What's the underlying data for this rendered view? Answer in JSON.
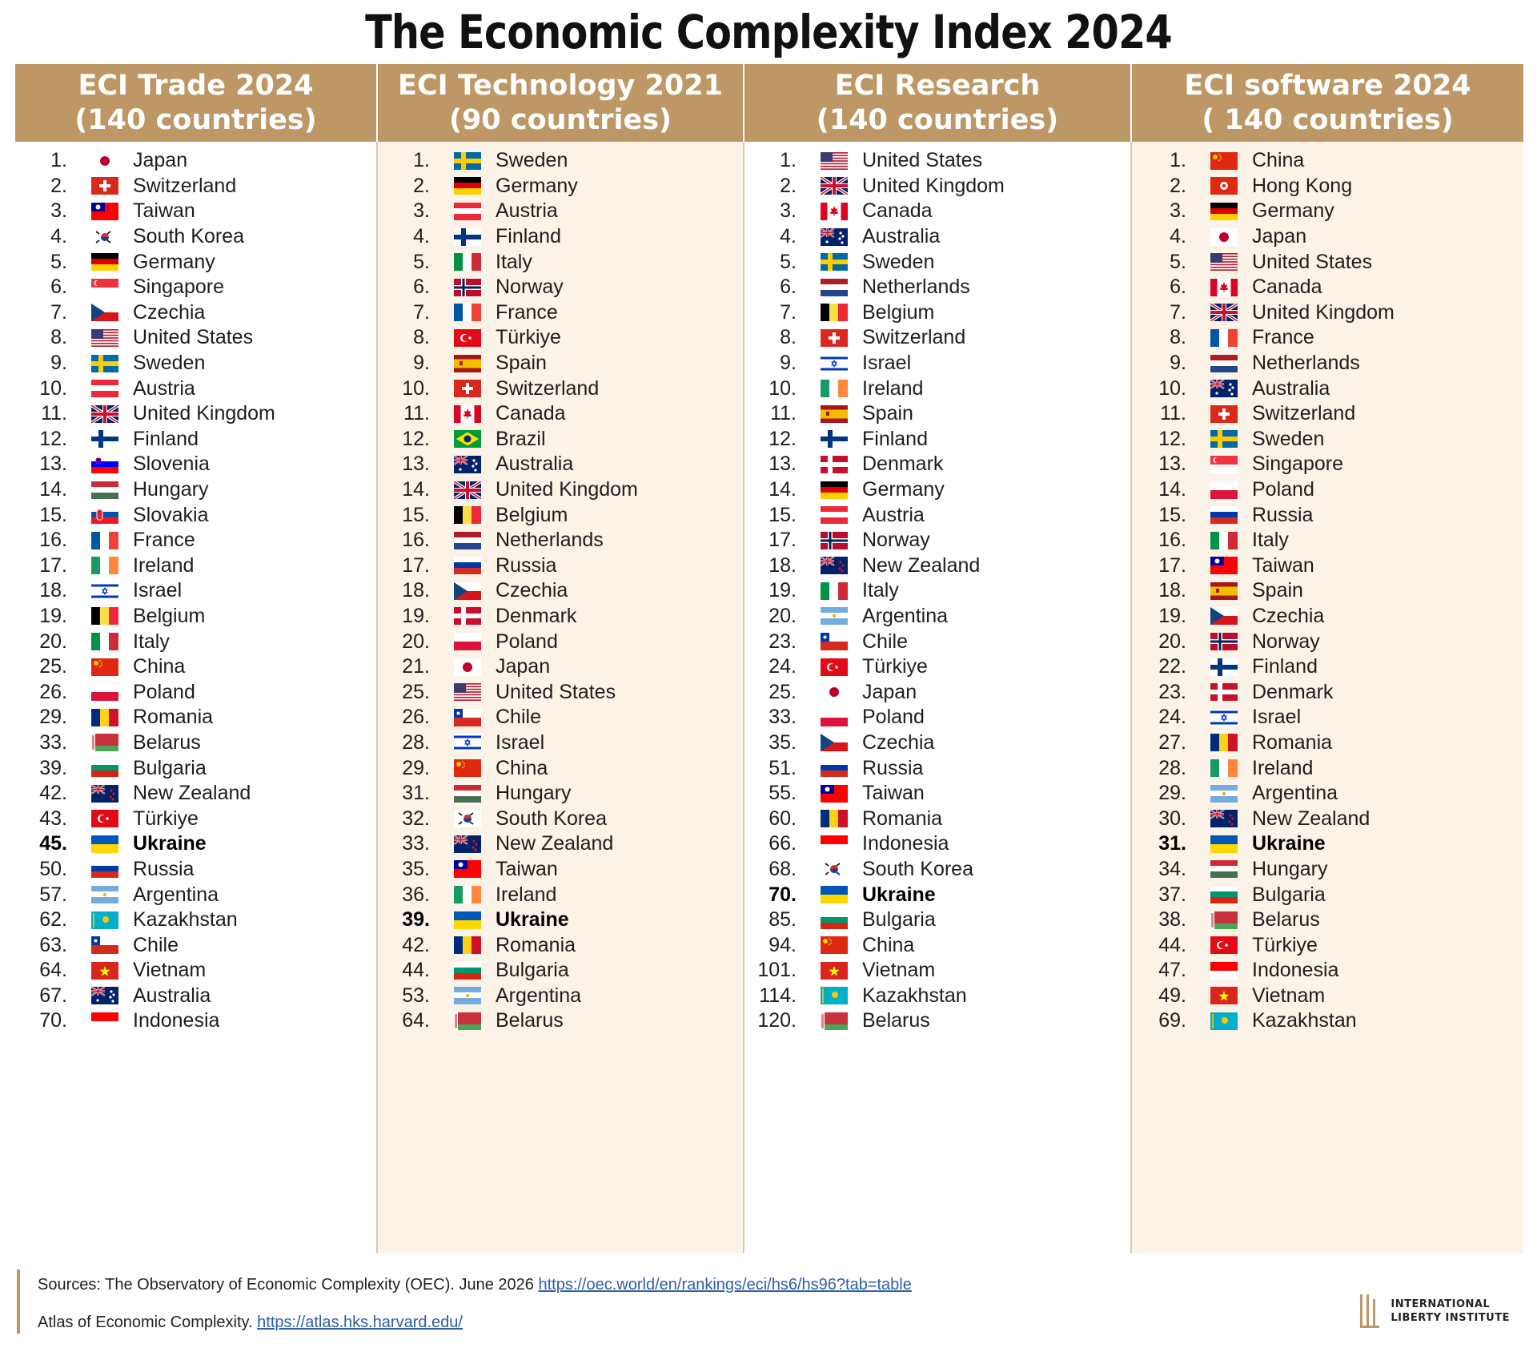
{
  "title": "The Economic Complexity Index  2024",
  "columns": [
    {
      "header": [
        "ECI Trade 2024",
        "(140 countries)"
      ],
      "rows": [
        {
          "rank": "1.",
          "country": "Japan",
          "flag": "japan-flag"
        },
        {
          "rank": "2.",
          "country": "Switzerland",
          "flag": "switzerland-flag"
        },
        {
          "rank": "3.",
          "country": "Taiwan",
          "flag": "taiwan-flag"
        },
        {
          "rank": "4.",
          "country": "South Korea",
          "flag": "south-korea-flag"
        },
        {
          "rank": "5.",
          "country": "Germany",
          "flag": "germany-flag"
        },
        {
          "rank": "6.",
          "country": "Singapore",
          "flag": "singapore-flag"
        },
        {
          "rank": "7.",
          "country": "Czechia",
          "flag": "czechia-flag"
        },
        {
          "rank": "8.",
          "country": "United States",
          "flag": "united-states-flag"
        },
        {
          "rank": "9.",
          "country": "Sweden",
          "flag": "sweden-flag"
        },
        {
          "rank": "10.",
          "country": "Austria",
          "flag": "austria-flag"
        },
        {
          "rank": "11.",
          "country": "United Kingdom",
          "flag": "united-kingdom-flag"
        },
        {
          "rank": "12.",
          "country": "Finland",
          "flag": "finland-flag"
        },
        {
          "rank": "13.",
          "country": "Slovenia",
          "flag": "slovenia-flag"
        },
        {
          "rank": "14.",
          "country": "Hungary",
          "flag": "hungary-flag"
        },
        {
          "rank": "15.",
          "country": "Slovakia",
          "flag": "slovakia-flag"
        },
        {
          "rank": "16.",
          "country": "France",
          "flag": "france-flag"
        },
        {
          "rank": "17.",
          "country": "Ireland",
          "flag": "ireland-flag"
        },
        {
          "rank": "18.",
          "country": "Israel",
          "flag": "israel-flag"
        },
        {
          "rank": "19.",
          "country": "Belgium",
          "flag": "belgium-flag"
        },
        {
          "rank": "20.",
          "country": "Italy",
          "flag": "italy-flag"
        },
        {
          "rank": "25.",
          "country": "China",
          "flag": "china-flag"
        },
        {
          "rank": "26.",
          "country": "Poland",
          "flag": "poland-flag"
        },
        {
          "rank": "29.",
          "country": "Romania",
          "flag": "romania-flag"
        },
        {
          "rank": "33.",
          "country": "Belarus",
          "flag": "belarus-flag"
        },
        {
          "rank": "39.",
          "country": "Bulgaria",
          "flag": "bulgaria-flag"
        },
        {
          "rank": "42.",
          "country": "New Zealand",
          "flag": "new-zealand-flag"
        },
        {
          "rank": "43.",
          "country": "Türkiye",
          "flag": "turkiye-flag"
        },
        {
          "rank": "45.",
          "country": "Ukraine",
          "flag": "ukraine-flag",
          "bold": true
        },
        {
          "rank": "50.",
          "country": "Russia",
          "flag": "russia-flag"
        },
        {
          "rank": "57.",
          "country": "Argentina",
          "flag": "argentina-flag"
        },
        {
          "rank": "62.",
          "country": "Kazakhstan",
          "flag": "kazakhstan-flag"
        },
        {
          "rank": "63.",
          "country": "Chile",
          "flag": "chile-flag"
        },
        {
          "rank": "64.",
          "country": "Vietnam",
          "flag": "vietnam-flag"
        },
        {
          "rank": "67.",
          "country": "Australia",
          "flag": "australia-flag"
        },
        {
          "rank": "70.",
          "country": "Indonesia",
          "flag": "indonesia-flag"
        }
      ]
    },
    {
      "header": [
        "ECI Technology 2021",
        "(90 countries)"
      ],
      "rows": [
        {
          "rank": "1.",
          "country": "Sweden",
          "flag": "sweden-flag"
        },
        {
          "rank": "2.",
          "country": "Germany",
          "flag": "germany-flag"
        },
        {
          "rank": "3.",
          "country": "Austria",
          "flag": "austria-flag"
        },
        {
          "rank": "4.",
          "country": "Finland",
          "flag": "finland-flag"
        },
        {
          "rank": "5.",
          "country": "Italy",
          "flag": "italy-flag"
        },
        {
          "rank": "6.",
          "country": "Norway",
          "flag": "norway-flag"
        },
        {
          "rank": "7.",
          "country": "France",
          "flag": "france-flag"
        },
        {
          "rank": "8.",
          "country": "Türkiye",
          "flag": "turkiye-flag"
        },
        {
          "rank": "9.",
          "country": "Spain",
          "flag": "spain-flag"
        },
        {
          "rank": "10.",
          "country": "Switzerland",
          "flag": "switzerland-flag"
        },
        {
          "rank": "11.",
          "country": "Canada",
          "flag": "canada-flag"
        },
        {
          "rank": "12.",
          "country": "Brazil",
          "flag": "brazil-flag"
        },
        {
          "rank": "13.",
          "country": "Australia",
          "flag": "australia-flag"
        },
        {
          "rank": "14.",
          "country": "United Kingdom",
          "flag": "united-kingdom-flag"
        },
        {
          "rank": "15.",
          "country": "Belgium",
          "flag": "belgium-flag"
        },
        {
          "rank": "16.",
          "country": "Netherlands",
          "flag": "netherlands-flag"
        },
        {
          "rank": "17.",
          "country": "Russia",
          "flag": "russia-flag"
        },
        {
          "rank": "18.",
          "country": "Czechia",
          "flag": "czechia-flag"
        },
        {
          "rank": "19.",
          "country": "Denmark",
          "flag": "denmark-flag"
        },
        {
          "rank": "20.",
          "country": "Poland",
          "flag": "poland-flag"
        },
        {
          "rank": "21.",
          "country": "Japan",
          "flag": "japan-flag"
        },
        {
          "rank": "25.",
          "country": "United States",
          "flag": "united-states-flag"
        },
        {
          "rank": "26.",
          "country": "Chile",
          "flag": "chile-flag"
        },
        {
          "rank": "28.",
          "country": "Israel",
          "flag": "israel-flag"
        },
        {
          "rank": "29.",
          "country": "China",
          "flag": "china-flag"
        },
        {
          "rank": "31.",
          "country": "Hungary",
          "flag": "hungary-flag"
        },
        {
          "rank": "32.",
          "country": "South Korea",
          "flag": "south-korea-flag"
        },
        {
          "rank": "33.",
          "country": "New Zealand",
          "flag": "new-zealand-flag"
        },
        {
          "rank": "35.",
          "country": "Taiwan",
          "flag": "taiwan-flag"
        },
        {
          "rank": "36.",
          "country": "Ireland",
          "flag": "ireland-flag"
        },
        {
          "rank": "39.",
          "country": "Ukraine",
          "flag": "ukraine-flag",
          "bold": true
        },
        {
          "rank": "42.",
          "country": "Romania",
          "flag": "romania-flag"
        },
        {
          "rank": "44.",
          "country": "Bulgaria",
          "flag": "bulgaria-flag"
        },
        {
          "rank": "53.",
          "country": "Argentina",
          "flag": "argentina-flag"
        },
        {
          "rank": "64.",
          "country": "Belarus",
          "flag": "belarus-flag"
        }
      ]
    },
    {
      "header": [
        "ECI Research",
        "(140 countries)"
      ],
      "rows": [
        {
          "rank": "1.",
          "country": "United States",
          "flag": "united-states-flag"
        },
        {
          "rank": "2.",
          "country": "United Kingdom",
          "flag": "united-kingdom-flag"
        },
        {
          "rank": "3.",
          "country": "Canada",
          "flag": "canada-flag"
        },
        {
          "rank": "4.",
          "country": "Australia",
          "flag": "australia-flag"
        },
        {
          "rank": "5.",
          "country": "Sweden",
          "flag": "sweden-flag"
        },
        {
          "rank": "6.",
          "country": "Netherlands",
          "flag": "netherlands-flag"
        },
        {
          "rank": "7.",
          "country": "Belgium",
          "flag": "belgium-flag"
        },
        {
          "rank": "8.",
          "country": "Switzerland",
          "flag": "switzerland-flag"
        },
        {
          "rank": "9.",
          "country": "Israel",
          "flag": "israel-flag"
        },
        {
          "rank": "10.",
          "country": "Ireland",
          "flag": "ireland-flag"
        },
        {
          "rank": "11.",
          "country": "Spain",
          "flag": "spain-flag"
        },
        {
          "rank": "12.",
          "country": "Finland",
          "flag": "finland-flag"
        },
        {
          "rank": "13.",
          "country": "Denmark",
          "flag": "denmark-flag"
        },
        {
          "rank": "14.",
          "country": "Germany",
          "flag": "germany-flag"
        },
        {
          "rank": "15.",
          "country": "Austria",
          "flag": "austria-flag"
        },
        {
          "rank": "17.",
          "country": "Norway",
          "flag": "norway-flag"
        },
        {
          "rank": "18.",
          "country": "New Zealand",
          "flag": "new-zealand-flag"
        },
        {
          "rank": "19.",
          "country": "Italy",
          "flag": "italy-flag"
        },
        {
          "rank": "20.",
          "country": "Argentina",
          "flag": "argentina-flag"
        },
        {
          "rank": "23.",
          "country": "Chile",
          "flag": "chile-flag"
        },
        {
          "rank": "24.",
          "country": "Türkiye",
          "flag": "turkiye-flag"
        },
        {
          "rank": "25.",
          "country": "Japan",
          "flag": "japan-flag"
        },
        {
          "rank": "33.",
          "country": "Poland",
          "flag": "poland-flag"
        },
        {
          "rank": "35.",
          "country": "Czechia",
          "flag": "czechia-flag"
        },
        {
          "rank": "51.",
          "country": "Russia",
          "flag": "russia-flag"
        },
        {
          "rank": "55.",
          "country": "Taiwan",
          "flag": "taiwan-flag"
        },
        {
          "rank": "60.",
          "country": "Romania",
          "flag": "romania-flag"
        },
        {
          "rank": "66.",
          "country": "Indonesia",
          "flag": "indonesia-flag"
        },
        {
          "rank": "68.",
          "country": "South Korea",
          "flag": "south-korea-flag"
        },
        {
          "rank": "70.",
          "country": "Ukraine",
          "flag": "ukraine-flag",
          "bold": true
        },
        {
          "rank": "85.",
          "country": "Bulgaria",
          "flag": "bulgaria-flag"
        },
        {
          "rank": "94.",
          "country": "China",
          "flag": "china-flag"
        },
        {
          "rank": "101.",
          "country": "Vietnam",
          "flag": "vietnam-flag"
        },
        {
          "rank": "114.",
          "country": "Kazakhstan",
          "flag": "kazakhstan-flag"
        },
        {
          "rank": "120.",
          "country": "Belarus",
          "flag": "belarus-flag"
        }
      ]
    },
    {
      "header": [
        "ECI software 2024",
        "( 140 countries)"
      ],
      "rows": [
        {
          "rank": "1.",
          "country": "China",
          "flag": "china-flag"
        },
        {
          "rank": "2.",
          "country": "Hong Kong",
          "flag": "hong-kong-flag"
        },
        {
          "rank": "3.",
          "country": "Germany",
          "flag": "germany-flag"
        },
        {
          "rank": "4.",
          "country": "Japan",
          "flag": "japan-flag"
        },
        {
          "rank": "5.",
          "country": "United States",
          "flag": "united-states-flag"
        },
        {
          "rank": "6.",
          "country": "Canada",
          "flag": "canada-flag"
        },
        {
          "rank": "7.",
          "country": "United Kingdom",
          "flag": "united-kingdom-flag"
        },
        {
          "rank": "8.",
          "country": "France",
          "flag": "france-flag"
        },
        {
          "rank": "9.",
          "country": "Netherlands",
          "flag": "netherlands-flag"
        },
        {
          "rank": "10.",
          "country": "Australia",
          "flag": "australia-flag"
        },
        {
          "rank": "11.",
          "country": "Switzerland",
          "flag": "switzerland-flag"
        },
        {
          "rank": "12.",
          "country": "Sweden",
          "flag": "sweden-flag"
        },
        {
          "rank": "13.",
          "country": "Singapore",
          "flag": "singapore-flag"
        },
        {
          "rank": "14.",
          "country": "Poland",
          "flag": "poland-flag"
        },
        {
          "rank": "15.",
          "country": "Russia",
          "flag": "russia-flag"
        },
        {
          "rank": "16.",
          "country": "Italy",
          "flag": "italy-flag"
        },
        {
          "rank": "17.",
          "country": "Taiwan",
          "flag": "taiwan-flag"
        },
        {
          "rank": "18.",
          "country": "Spain",
          "flag": "spain-flag"
        },
        {
          "rank": "19.",
          "country": "Czechia",
          "flag": "czechia-flag"
        },
        {
          "rank": "20.",
          "country": "Norway",
          "flag": "norway-flag"
        },
        {
          "rank": "22.",
          "country": "Finland",
          "flag": "finland-flag"
        },
        {
          "rank": "23.",
          "country": "Denmark",
          "flag": "denmark-flag"
        },
        {
          "rank": "24.",
          "country": "Israel",
          "flag": "israel-flag"
        },
        {
          "rank": "27.",
          "country": "Romania",
          "flag": "romania-flag"
        },
        {
          "rank": "28.",
          "country": "Ireland",
          "flag": "ireland-flag"
        },
        {
          "rank": "29.",
          "country": "Argentina",
          "flag": "argentina-flag"
        },
        {
          "rank": "30.",
          "country": "New Zealand",
          "flag": "new-zealand-flag"
        },
        {
          "rank": "31.",
          "country": "Ukraine",
          "flag": "ukraine-flag",
          "bold": true
        },
        {
          "rank": "34.",
          "country": "Hungary",
          "flag": "hungary-flag"
        },
        {
          "rank": "37.",
          "country": "Bulgaria",
          "flag": "bulgaria-flag"
        },
        {
          "rank": "38.",
          "country": "Belarus",
          "flag": "belarus-flag"
        },
        {
          "rank": "44.",
          "country": "Türkiye",
          "flag": "turkiye-flag"
        },
        {
          "rank": "47.",
          "country": "Indonesia",
          "flag": "indonesia-flag"
        },
        {
          "rank": "49.",
          "country": "Vietnam",
          "flag": "vietnam-flag"
        },
        {
          "rank": "69.",
          "country": "Kazakhstan",
          "flag": "kazakhstan-flag"
        }
      ]
    }
  ],
  "footer": {
    "sources_prefix": "Sources: The Observatory of Economic Complexity (OEC). June 2026 ",
    "oec_link": "https://oec.world/en/rankings/eci/hs6/hs96?tab=table",
    "atlas_prefix": "Atlas of Economic Complexity. ",
    "atlas_link": "https://atlas.hks.harvard.edu/",
    "logo_line1": "INTERNATIONAL",
    "logo_line2": "LIBERTY INSTITUTE"
  },
  "colors": {
    "header_bg": "#bd9866",
    "cream_bg": "#fbf2e8",
    "link": "#2f5da8"
  }
}
